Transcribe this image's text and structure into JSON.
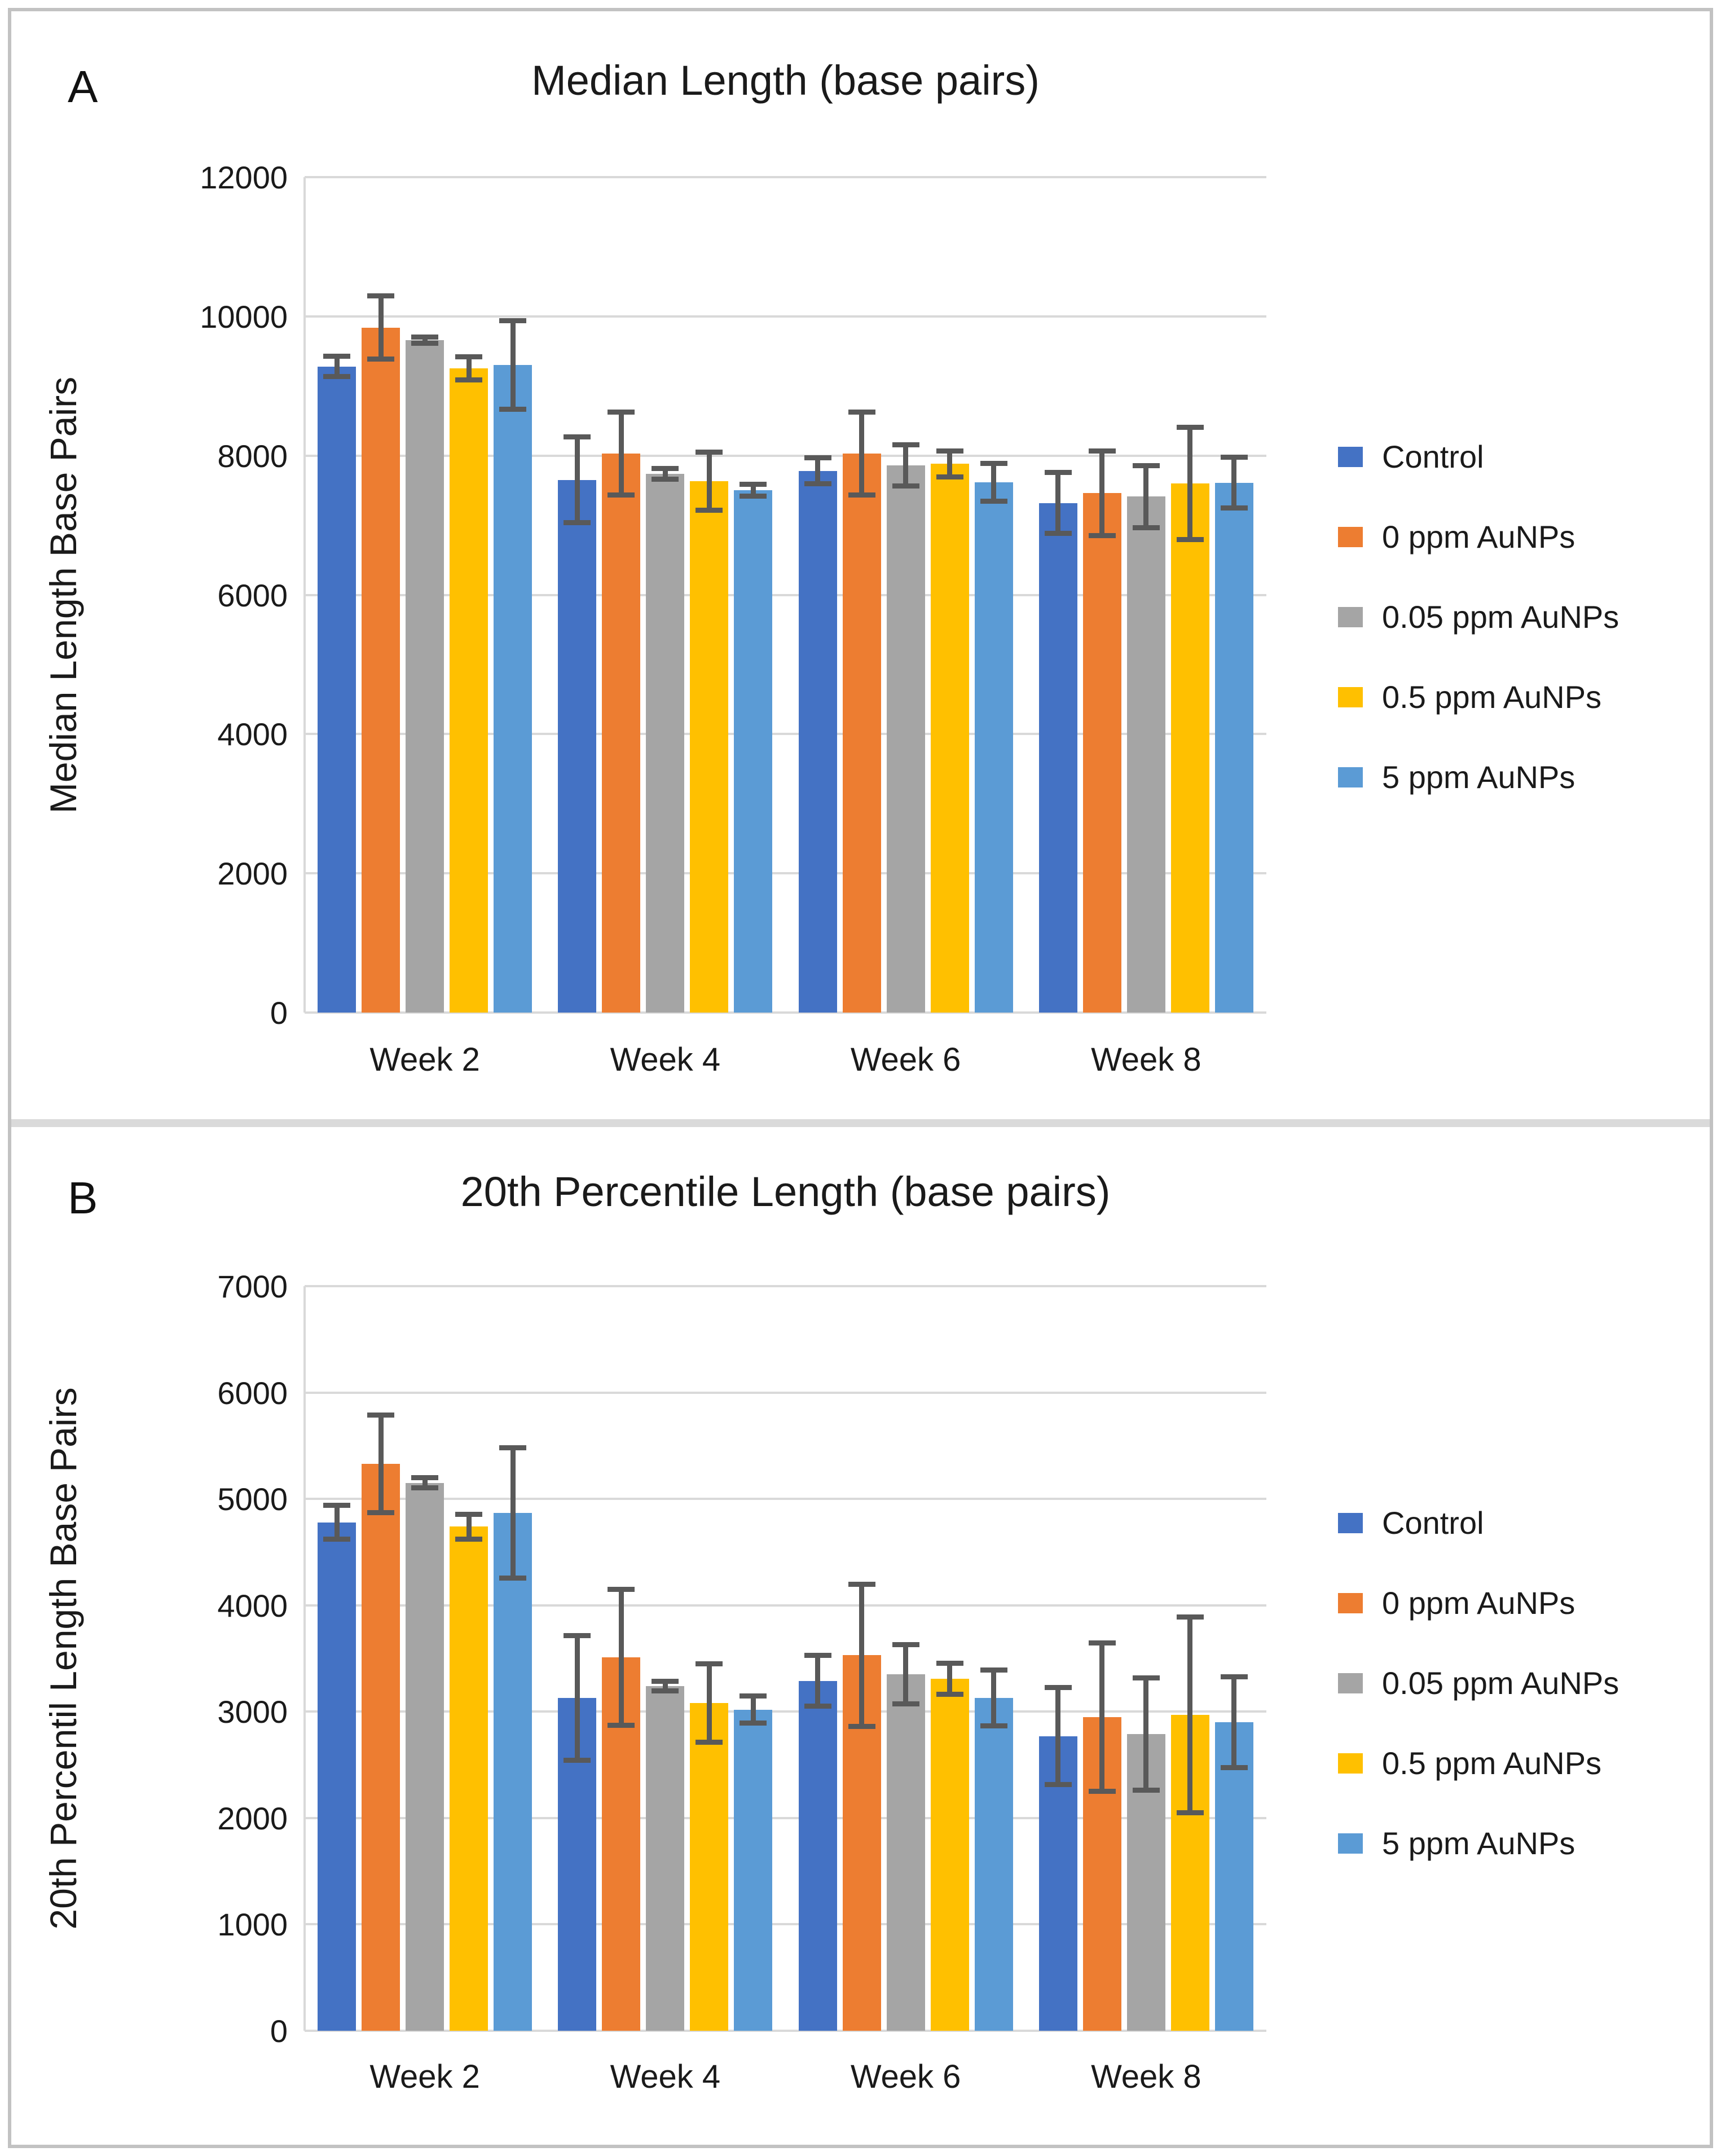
{
  "figure": {
    "panel_letters": [
      "A",
      "B"
    ],
    "colors": {
      "control": "#4472C4",
      "ppm0": "#ED7D31",
      "ppm005": "#A5A5A5",
      "ppm05": "#FFC000",
      "ppm5": "#5B9BD5",
      "error_bar": "#595959",
      "gridline": "#D9D9D9",
      "frame_border": "#C2C2C2",
      "divider": "#DADADA",
      "text": "#1A1A1A"
    }
  },
  "chart_data": [
    {
      "type": "bar",
      "panel_letter": "A",
      "title": "Median Length (base pairs)",
      "xlabel": "",
      "ylabel": "Median Length Base Pairs",
      "categories": [
        "Week 2",
        "Week 4",
        "Week 6",
        "Week 8"
      ],
      "ylim": [
        0,
        12000
      ],
      "ytick_step": 2000,
      "ytick_labels": [
        "12000",
        "10000",
        "8000",
        "6000",
        "4000",
        "2000",
        "0"
      ],
      "grid": true,
      "legend_position": "right",
      "series": [
        {
          "name": "Control",
          "color": "#4472C4",
          "values": [
            9280,
            7650,
            7780,
            7320
          ],
          "errors": [
            150,
            620,
            190,
            440
          ]
        },
        {
          "name": "0 ppm AuNPs",
          "color": "#ED7D31",
          "values": [
            9840,
            8030,
            8030,
            7460
          ],
          "errors": [
            460,
            600,
            600,
            610
          ]
        },
        {
          "name": "0.05 ppm AuNPs",
          "color": "#A5A5A5",
          "values": [
            9660,
            7740,
            7860,
            7410
          ],
          "errors": [
            50,
            80,
            300,
            450
          ]
        },
        {
          "name": "0.5 ppm AuNPs",
          "color": "#FFC000",
          "values": [
            9250,
            7630,
            7880,
            7600
          ],
          "errors": [
            170,
            420,
            190,
            810
          ]
        },
        {
          "name": "5 ppm AuNPs",
          "color": "#5B9BD5",
          "values": [
            9300,
            7500,
            7620,
            7610
          ],
          "errors": [
            640,
            90,
            275,
            370
          ]
        }
      ]
    },
    {
      "type": "bar",
      "panel_letter": "B",
      "title": "20th Percentile Length (base pairs)",
      "xlabel": "",
      "ylabel": "20th Percentil Length Base Pairs",
      "categories": [
        "Week 2",
        "Week 4",
        "Week 6",
        "Week 8"
      ],
      "ylim": [
        0,
        7000
      ],
      "ytick_step": 1000,
      "ytick_labels": [
        "7000",
        "6000",
        "5000",
        "4000",
        "3000",
        "2000",
        "1000",
        "0"
      ],
      "grid": true,
      "legend_position": "right",
      "series": [
        {
          "name": "Control",
          "color": "#4472C4",
          "values": [
            4780,
            3130,
            3290,
            2770
          ],
          "errors": [
            160,
            590,
            240,
            460
          ]
        },
        {
          "name": "0 ppm AuNPs",
          "color": "#ED7D31",
          "values": [
            5330,
            3510,
            3530,
            2950
          ],
          "errors": [
            460,
            640,
            670,
            700
          ]
        },
        {
          "name": "0.05 ppm AuNPs",
          "color": "#A5A5A5",
          "values": [
            5150,
            3240,
            3350,
            2790
          ],
          "errors": [
            50,
            50,
            280,
            530
          ]
        },
        {
          "name": "0.5 ppm AuNPs",
          "color": "#FFC000",
          "values": [
            4740,
            3080,
            3310,
            2970
          ],
          "errors": [
            120,
            370,
            150,
            925
          ]
        },
        {
          "name": "5 ppm AuNPs",
          "color": "#5B9BD5",
          "values": [
            4870,
            3020,
            3130,
            2900
          ],
          "errors": [
            615,
            130,
            265,
            430
          ]
        }
      ]
    }
  ]
}
